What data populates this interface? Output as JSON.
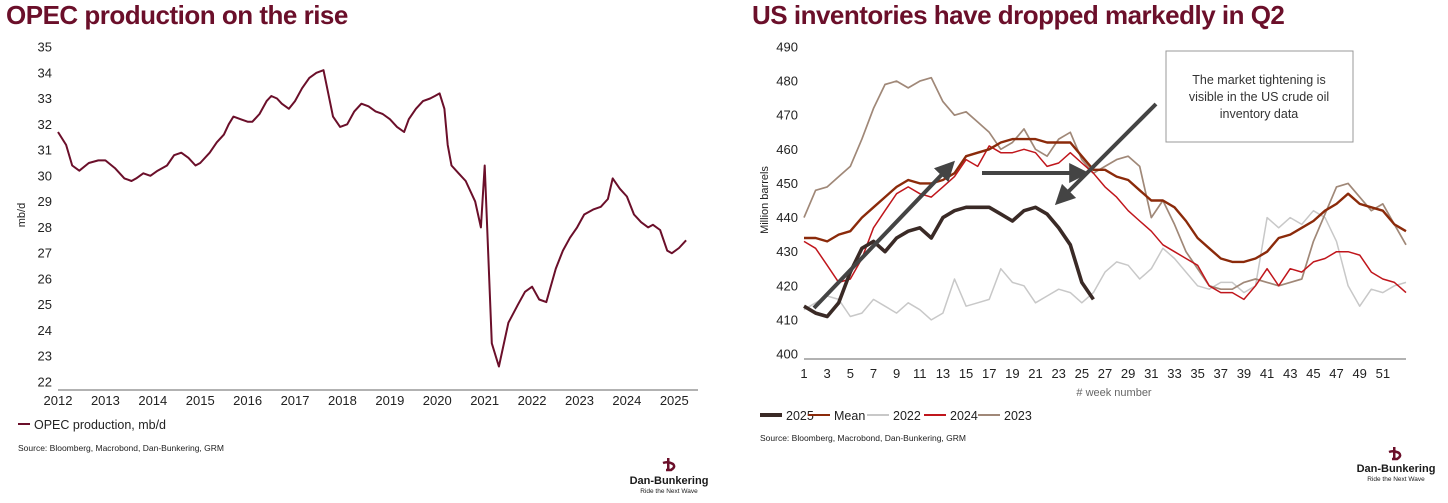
{
  "colors": {
    "title": "#6b0f2a",
    "opec": "#6b0f2a",
    "s2025": "#3a2a26",
    "mean": "#8b2a0a",
    "s2022": "#c8c8c8",
    "s2024": "#c0161c",
    "s2023": "#a08878",
    "arrow": "#444444"
  },
  "left": {
    "title": "OPEC production on the rise",
    "source": "Source: Bloomberg, Macrobond, Dan-Bunkering, GRM",
    "logo_name": "Dan-Bunkering",
    "logo_tag": "Ride the Next Wave"
  },
  "right": {
    "title": "US inventories have dropped markedly in Q2",
    "note_lines": [
      "The market tightening is",
      "visible in the US crude oil",
      "inventory data"
    ],
    "source": "Source: Bloomberg, Macrobond, Dan-Bunkering, GRM",
    "logo_name": "Dan-Bunkering",
    "logo_tag": "Ride the Next Wave"
  },
  "chart_data": [
    {
      "type": "line",
      "title": "OPEC production on the rise",
      "xlabel": "",
      "ylabel": "mb/d",
      "xlim": [
        2012,
        2025.5
      ],
      "ylim": [
        22,
        35
      ],
      "x_ticks": [
        "2012",
        "2013",
        "2014",
        "2015",
        "2016",
        "2017",
        "2018",
        "2019",
        "2020",
        "2021",
        "2022",
        "2023",
        "2024",
        "2025"
      ],
      "y_ticks": [
        "22",
        "23",
        "24",
        "25",
        "26",
        "27",
        "28",
        "29",
        "30",
        "31",
        "32",
        "33",
        "34",
        "35"
      ],
      "series": [
        {
          "name": "OPEC production, mb/d",
          "x": [
            2012.0,
            2012.17,
            2012.3,
            2012.45,
            2012.65,
            2012.85,
            2013.0,
            2013.2,
            2013.4,
            2013.55,
            2013.65,
            2013.8,
            2013.95,
            2014.1,
            2014.3,
            2014.45,
            2014.6,
            2014.75,
            2014.9,
            2015.0,
            2015.2,
            2015.35,
            2015.5,
            2015.6,
            2015.7,
            2015.85,
            2016.0,
            2016.1,
            2016.25,
            2016.4,
            2016.5,
            2016.62,
            2016.72,
            2016.87,
            2017.0,
            2017.15,
            2017.3,
            2017.45,
            2017.6,
            2017.8,
            2017.95,
            2018.1,
            2018.25,
            2018.4,
            2018.55,
            2018.7,
            2018.85,
            2019.0,
            2019.15,
            2019.3,
            2019.4,
            2019.55,
            2019.7,
            2019.85,
            2019.95,
            2020.05,
            2020.15,
            2020.22,
            2020.3,
            2020.45,
            2020.6,
            2020.8,
            2020.92,
            2021.0,
            2021.15,
            2021.3,
            2021.5,
            2021.7,
            2021.85,
            2022.0,
            2022.15,
            2022.3,
            2022.5,
            2022.65,
            2022.8,
            2022.95,
            2023.1,
            2023.3,
            2023.45,
            2023.6,
            2023.7,
            2023.85,
            2024.0,
            2024.15,
            2024.3,
            2024.45,
            2024.55,
            2024.7,
            2024.85,
            2024.95,
            2025.1,
            2025.25
          ],
          "values": [
            31.7,
            31.2,
            30.4,
            30.2,
            30.5,
            30.6,
            30.6,
            30.3,
            29.9,
            29.8,
            29.9,
            30.1,
            30.0,
            30.2,
            30.4,
            30.8,
            30.9,
            30.7,
            30.4,
            30.5,
            30.9,
            31.3,
            31.6,
            32.0,
            32.3,
            32.2,
            32.1,
            32.1,
            32.4,
            32.9,
            33.1,
            33.0,
            32.8,
            32.6,
            32.9,
            33.4,
            33.8,
            34.0,
            34.1,
            32.3,
            31.9,
            32.0,
            32.5,
            32.8,
            32.7,
            32.5,
            32.4,
            32.2,
            31.9,
            31.7,
            32.2,
            32.6,
            32.9,
            33.0,
            33.1,
            33.2,
            32.6,
            31.2,
            30.4,
            30.1,
            29.8,
            29.0,
            28.0,
            30.4,
            23.5,
            22.6,
            24.3,
            25.0,
            25.5,
            25.7,
            25.2,
            25.1,
            26.4,
            27.1,
            27.6,
            28.0,
            28.5,
            28.7,
            28.8,
            29.1,
            29.9,
            29.5,
            29.2,
            28.5,
            28.2,
            28.0,
            28.1,
            27.9,
            27.1,
            27.0,
            27.2,
            27.5
          ]
        }
      ],
      "legend": "bottom-left"
    },
    {
      "type": "line",
      "title": "US inventories have dropped markedly in Q2",
      "xlabel": "# week number",
      "ylabel": "Million barrels",
      "xlim": [
        1,
        53
      ],
      "ylim": [
        400,
        490
      ],
      "x_ticks": [
        "1",
        "3",
        "5",
        "7",
        "9",
        "11",
        "13",
        "15",
        "17",
        "19",
        "21",
        "23",
        "25",
        "27",
        "29",
        "31",
        "33",
        "35",
        "37",
        "39",
        "41",
        "43",
        "45",
        "47",
        "49",
        "51"
      ],
      "y_ticks": [
        "400",
        "410",
        "420",
        "430",
        "440",
        "450",
        "460",
        "470",
        "480",
        "490"
      ],
      "series": [
        {
          "name": "2025",
          "x": [
            1,
            2,
            3,
            4,
            5,
            6,
            7,
            8,
            9,
            10,
            11,
            12,
            13,
            14,
            15,
            16,
            17,
            18,
            19,
            20,
            21,
            22,
            23,
            24,
            25,
            26
          ],
          "values": [
            414,
            412,
            411,
            415,
            424,
            431,
            433,
            430,
            434,
            436,
            437,
            434,
            440,
            442,
            443,
            443,
            443,
            441,
            439,
            442,
            443,
            441,
            437,
            432,
            421,
            416
          ]
        },
        {
          "name": "Mean",
          "x": [
            1,
            2,
            3,
            4,
            5,
            6,
            7,
            8,
            9,
            10,
            11,
            12,
            13,
            14,
            15,
            16,
            17,
            18,
            19,
            20,
            21,
            22,
            23,
            24,
            25,
            26,
            27,
            28,
            29,
            30,
            31,
            32,
            33,
            34,
            35,
            36,
            37,
            38,
            39,
            40,
            41,
            42,
            43,
            44,
            45,
            46,
            47,
            48,
            49,
            50,
            51,
            52,
            53
          ],
          "values": [
            434,
            434,
            433,
            435,
            436,
            440,
            443,
            446,
            449,
            451,
            450,
            450,
            451,
            453,
            458,
            459,
            460,
            462,
            463,
            463,
            463,
            462,
            462,
            462,
            458,
            454,
            454,
            452,
            451,
            448,
            445,
            445,
            443,
            439,
            434,
            431,
            428,
            427,
            427,
            428,
            430,
            434,
            435,
            437,
            439,
            442,
            444,
            447,
            444,
            443,
            442,
            438,
            436
          ]
        },
        {
          "name": "2022",
          "x": [
            1,
            2,
            3,
            4,
            5,
            6,
            7,
            8,
            9,
            10,
            11,
            12,
            13,
            14,
            15,
            16,
            17,
            18,
            19,
            20,
            21,
            22,
            23,
            24,
            25,
            26,
            27,
            28,
            29,
            30,
            31,
            32,
            33,
            34,
            35,
            36,
            37,
            38,
            39,
            40,
            41,
            42,
            43,
            44,
            45,
            46,
            47,
            48,
            49,
            50,
            51,
            52,
            53
          ],
          "values": [
            413,
            415,
            417,
            416,
            411,
            412,
            416,
            414,
            412,
            415,
            413,
            410,
            412,
            422,
            414,
            415,
            416,
            425,
            421,
            420,
            415,
            417,
            419,
            418,
            415,
            418,
            424,
            427,
            426,
            422,
            425,
            431,
            428,
            424,
            420,
            419,
            421,
            421,
            418,
            420,
            440,
            437,
            440,
            438,
            442,
            440,
            433,
            420,
            414,
            419,
            418,
            420,
            421
          ]
        },
        {
          "name": "2024",
          "x": [
            1,
            2,
            3,
            4,
            5,
            6,
            7,
            8,
            9,
            10,
            11,
            12,
            13,
            14,
            15,
            16,
            17,
            18,
            19,
            20,
            21,
            22,
            23,
            24,
            25,
            26,
            27,
            28,
            29,
            30,
            31,
            32,
            33,
            34,
            35,
            36,
            37,
            38,
            39,
            40,
            41,
            42,
            43,
            44,
            45,
            46,
            47,
            48,
            49,
            50,
            51,
            52,
            53
          ],
          "values": [
            433,
            431,
            426,
            421,
            422,
            428,
            437,
            442,
            447,
            449,
            447,
            446,
            449,
            452,
            457,
            455,
            461,
            459,
            459,
            460,
            459,
            455,
            456,
            459,
            456,
            453,
            449,
            446,
            442,
            439,
            436,
            432,
            430,
            428,
            426,
            420,
            418,
            418,
            416,
            420,
            425,
            420,
            425,
            424,
            427,
            428,
            430,
            430,
            429,
            424,
            422,
            421,
            418
          ]
        },
        {
          "name": "2023",
          "x": [
            1,
            2,
            3,
            4,
            5,
            6,
            7,
            8,
            9,
            10,
            11,
            12,
            13,
            14,
            15,
            16,
            17,
            18,
            19,
            20,
            21,
            22,
            23,
            24,
            25,
            26,
            27,
            28,
            29,
            30,
            31,
            32,
            33,
            34,
            35,
            36,
            37,
            38,
            39,
            40,
            41,
            42,
            43,
            44,
            45,
            46,
            47,
            48,
            49,
            50,
            51,
            52,
            53
          ],
          "values": [
            440,
            448,
            449,
            452,
            455,
            463,
            472,
            479,
            480,
            478,
            480,
            481,
            474,
            470,
            471,
            468,
            465,
            460,
            462,
            466,
            460,
            458,
            463,
            465,
            457,
            453,
            455,
            457,
            458,
            455,
            440,
            445,
            438,
            430,
            425,
            420,
            419,
            419,
            421,
            422,
            421,
            420,
            421,
            422,
            433,
            441,
            449,
            450,
            446,
            442,
            444,
            438,
            432
          ]
        }
      ],
      "legend": "bottom-left"
    }
  ]
}
